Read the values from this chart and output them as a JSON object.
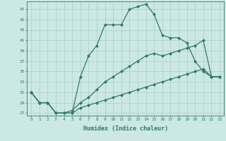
{
  "xlabel": "Humidex (Indice chaleur)",
  "ylabel": "",
  "background_color": "#cce8e4",
  "grid_color": "#aacccc",
  "line_color": "#2d7a6e",
  "x": [
    0,
    1,
    2,
    3,
    4,
    5,
    6,
    7,
    8,
    9,
    10,
    11,
    12,
    13,
    14,
    15,
    16,
    17,
    18,
    19,
    20,
    21,
    22,
    23
  ],
  "line1": [
    31,
    29,
    29,
    27,
    27,
    27,
    34,
    38,
    40,
    44,
    44,
    44,
    47,
    47.5,
    48,
    46,
    42,
    41.5,
    41.5,
    40.5,
    37,
    35,
    34,
    34
  ],
  "line2": [
    31,
    29,
    29,
    27,
    27,
    27.5,
    29,
    30,
    31.5,
    33,
    34,
    35,
    36,
    37,
    38,
    38.5,
    38,
    38.5,
    39,
    39.5,
    40,
    41,
    34,
    34
  ],
  "line3": [
    31,
    29,
    29,
    27,
    27,
    27,
    28,
    28.5,
    29,
    29.5,
    30,
    30.5,
    31,
    31.5,
    32,
    32.5,
    33,
    33.5,
    34,
    34.5,
    35,
    35.5,
    34,
    34
  ],
  "ylim": [
    26.5,
    48.5
  ],
  "yticks": [
    27,
    29,
    31,
    33,
    35,
    37,
    39,
    41,
    43,
    45,
    47
  ],
  "xlim": [
    -0.5,
    23.5
  ],
  "xticks": [
    0,
    1,
    2,
    3,
    4,
    5,
    6,
    7,
    8,
    9,
    10,
    11,
    12,
    13,
    14,
    15,
    16,
    17,
    18,
    19,
    20,
    21,
    22,
    23
  ],
  "marker": "D",
  "markersize": 2.0,
  "linewidth": 0.9
}
